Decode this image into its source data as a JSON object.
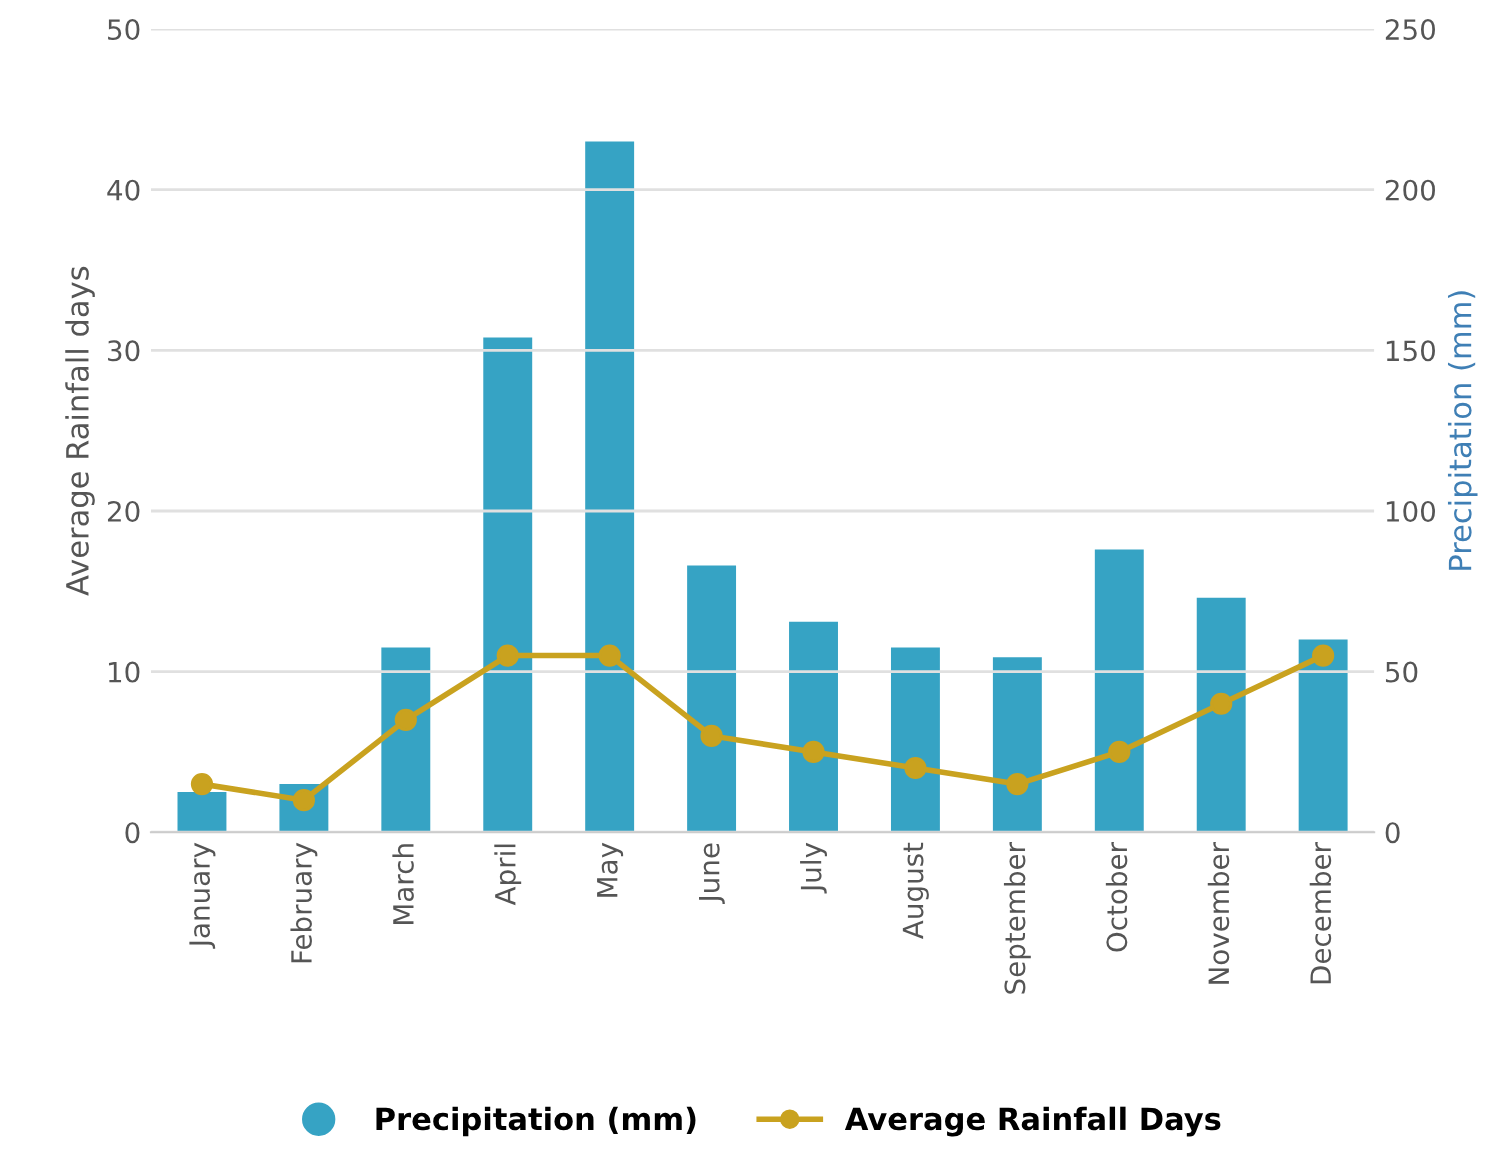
{
  "chart_data": {
    "type": "bar",
    "categories": [
      "January",
      "February",
      "March",
      "April",
      "May",
      "June",
      "July",
      "August",
      "September",
      "October",
      "November",
      "December"
    ],
    "series": [
      {
        "name": "Precipitation (mm)",
        "axis": "y2",
        "color": "#36a3c4",
        "values": [
          12.5,
          15,
          57.5,
          154,
          215,
          83,
          65.5,
          57.5,
          54.5,
          88,
          73,
          60
        ]
      },
      {
        "name": "Average Rainfall Days",
        "type": "line",
        "axis": "y",
        "color": "#c9a21f",
        "marker": "circle",
        "values": [
          3,
          2,
          7,
          11,
          11,
          6,
          5,
          4,
          3,
          5,
          8,
          11
        ]
      }
    ],
    "ylabel": "Average Rainfall days",
    "y2label": "Precipitation (mm)",
    "ylim": [
      0,
      50
    ],
    "yticks": [
      0,
      10,
      20,
      30,
      40,
      50
    ],
    "y2lim": [
      0,
      250
    ],
    "y2ticks": [
      0,
      50,
      100,
      150,
      200,
      250
    ],
    "grid": "y",
    "legend": "bottom"
  }
}
